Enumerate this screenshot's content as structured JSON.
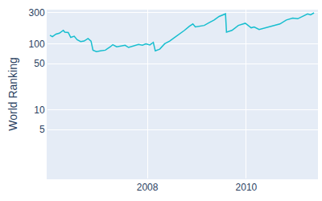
{
  "chart_data": {
    "type": "line",
    "y_label": "World Ranking",
    "color": "#17becf",
    "log": "y",
    "grid": true,
    "x": [
      2006.03,
      2006.08,
      2006.15,
      2006.22,
      2006.3,
      2006.33,
      2006.4,
      2006.45,
      2006.52,
      2006.58,
      2006.65,
      2006.72,
      2006.8,
      2006.86,
      2006.9,
      2006.97,
      2007.05,
      2007.15,
      2007.25,
      2007.3,
      2007.38,
      2007.45,
      2007.55,
      2007.62,
      2007.72,
      2007.82,
      2007.9,
      2007.97,
      2008.05,
      2008.12,
      2008.16,
      2008.25,
      2008.35,
      2008.45,
      2008.55,
      2008.65,
      2008.75,
      2008.85,
      2008.92,
      2008.97,
      2009.05,
      2009.15,
      2009.25,
      2009.35,
      2009.45,
      2009.52,
      2009.58,
      2009.6,
      2009.71,
      2009.84,
      2009.98,
      2010.1,
      2010.16,
      2010.26,
      2010.39,
      2010.55,
      2010.68,
      2010.81,
      2010.94,
      2011.04,
      2011.17,
      2011.24,
      2011.3,
      2011.37
    ],
    "values": [
      135,
      128,
      140,
      145,
      160,
      150,
      148,
      125,
      130,
      115,
      108,
      110,
      120,
      110,
      80,
      76,
      78,
      80,
      90,
      97,
      90,
      92,
      95,
      88,
      92,
      98,
      95,
      100,
      96,
      105,
      78,
      83,
      100,
      110,
      125,
      140,
      160,
      185,
      200,
      180,
      185,
      190,
      210,
      230,
      260,
      270,
      285,
      150,
      160,
      190,
      205,
      175,
      180,
      165,
      175,
      185,
      200,
      230,
      245,
      240,
      270,
      285,
      275,
      295
    ],
    "xlim": [
      2005.98,
      2011.45
    ],
    "xticks": [
      2008,
      2010
    ],
    "ylim": [
      0.9,
      330
    ],
    "yticks": [
      5,
      10,
      50,
      100,
      300
    ]
  }
}
